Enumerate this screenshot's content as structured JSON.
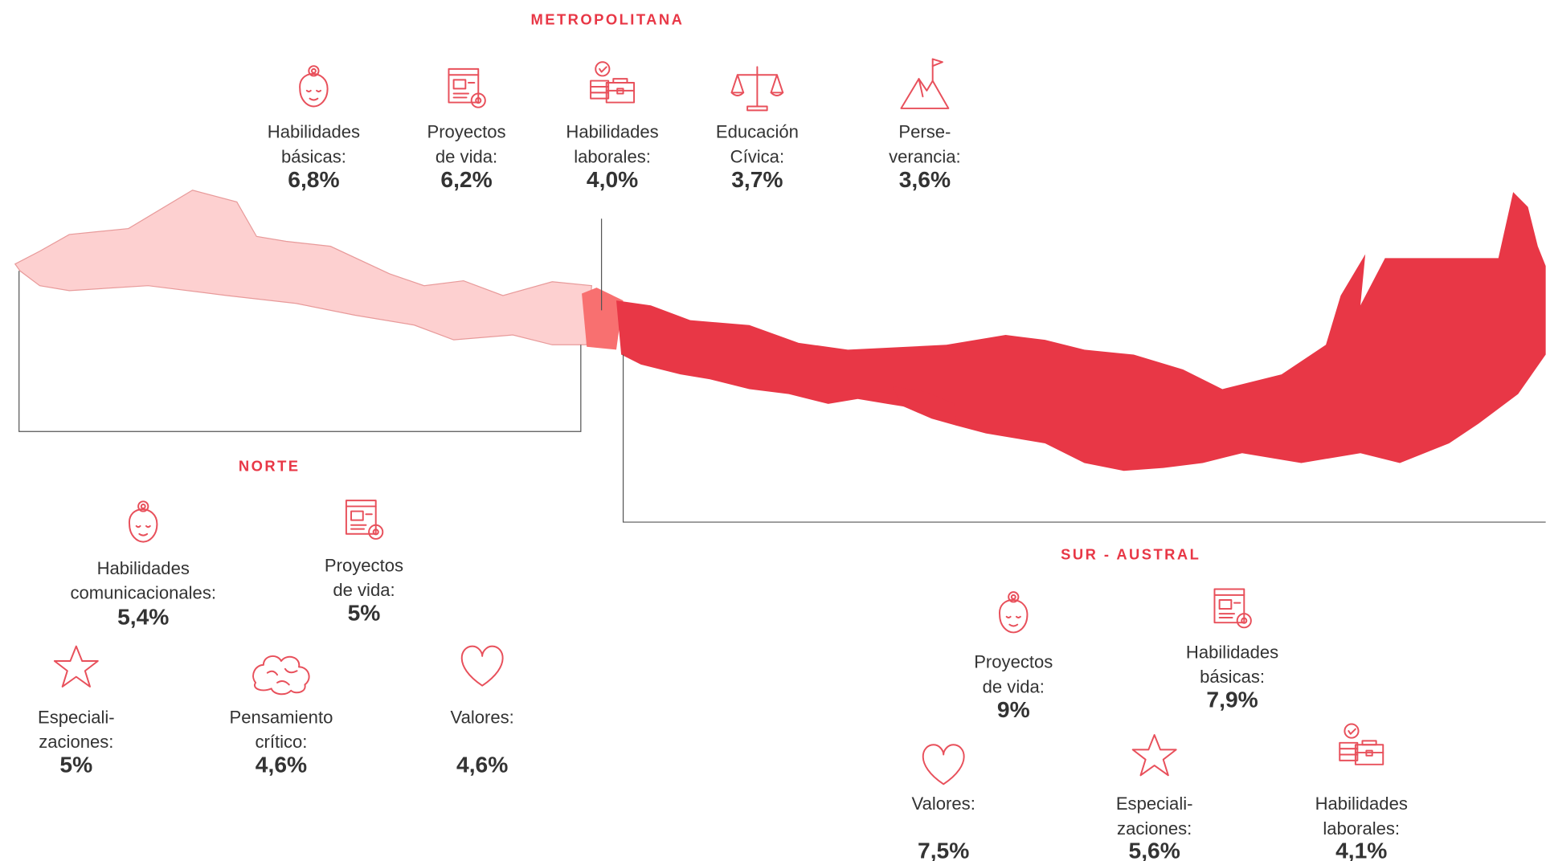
{
  "regions": [
    {
      "name": "METROPOLITANA",
      "items": [
        {
          "label": [
            "Habilidades",
            "básicas:"
          ],
          "value": "6,8%"
        },
        {
          "label": [
            "Proyectos",
            "de vida:"
          ],
          "value": "6,2%"
        },
        {
          "label": [
            "Habilidades",
            "laborales:"
          ],
          "value": "4,0%"
        },
        {
          "label": [
            "Educación",
            "Cívica:"
          ],
          "value": "3,7%"
        },
        {
          "label": [
            "Perse-",
            "verancia:"
          ],
          "value": "3,6%"
        }
      ]
    },
    {
      "name": "NORTE",
      "items": [
        {
          "label": [
            "Habilidades",
            "comunicacionales:"
          ],
          "value": "5,4%"
        },
        {
          "label": [
            "Proyectos",
            "de vida:"
          ],
          "value": "5%"
        },
        {
          "label": [
            "Especiali-",
            "zaciones:"
          ],
          "value": "5%"
        },
        {
          "label": [
            "Pensamiento",
            "crítico:"
          ],
          "value": "4,6%"
        },
        {
          "label": [
            "Valores:"
          ],
          "value": "4,6%"
        }
      ]
    },
    {
      "name": "SUR - AUSTRAL",
      "items": [
        {
          "label": [
            "Proyectos",
            "de vida:"
          ],
          "value": "9%"
        },
        {
          "label": [
            "Habilidades",
            "básicas:"
          ],
          "value": "7,9%"
        },
        {
          "label": [
            "Valores:"
          ],
          "value": "7,5%"
        },
        {
          "label": [
            "Especiali-",
            "zaciones:"
          ],
          "value": "5,6%"
        },
        {
          "label": [
            "Habilidades",
            "laborales:"
          ],
          "value": "4,1%"
        }
      ]
    }
  ]
}
